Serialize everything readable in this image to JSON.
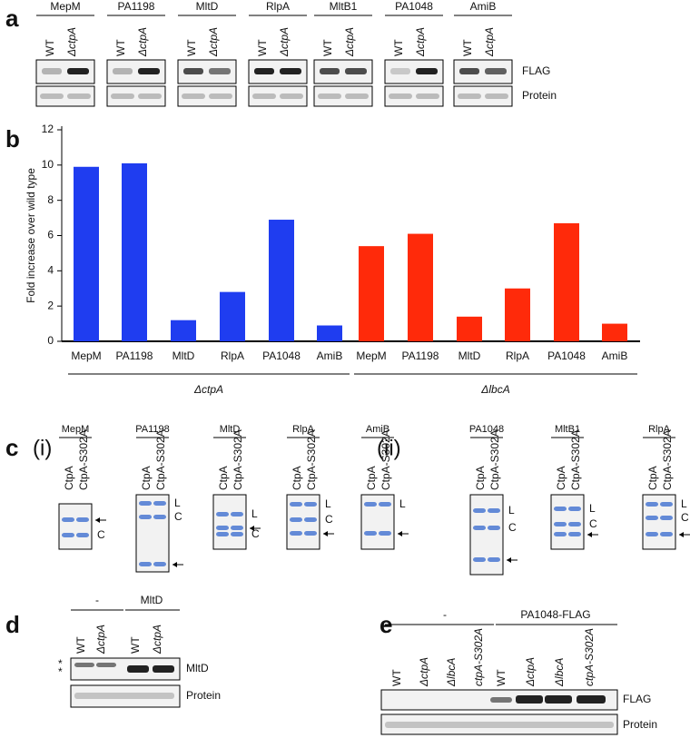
{
  "panel_a": {
    "label": "a",
    "proteins": [
      "MepM",
      "PA1198",
      "MltD",
      "RlpA",
      "MltB1",
      "PA1048",
      "AmiB"
    ],
    "lanes": [
      "WT",
      "ΔctpA"
    ],
    "blots": [
      "FLAG",
      "Protein"
    ]
  },
  "chart_data": {
    "type": "bar",
    "label": "b",
    "y_label": "Fold increase over wild type",
    "categories": [
      "MepM",
      "PA1198",
      "MltD",
      "RlpA",
      "PA1048",
      "AmiB"
    ],
    "series": [
      {
        "name": "ΔctpA",
        "color": "#1f3df0",
        "values": [
          9.9,
          10.1,
          1.2,
          2.8,
          6.9,
          0.9
        ]
      },
      {
        "name": "ΔlbcA",
        "color": "#ff2a0a",
        "values": [
          5.4,
          6.1,
          1.4,
          3.0,
          6.7,
          1.0
        ]
      }
    ],
    "ylim": [
      0,
      12
    ],
    "yticks": [
      0,
      2,
      4,
      6,
      8,
      10,
      12
    ]
  },
  "panel_c": {
    "label": "c",
    "lanes": [
      "CtpA",
      "CtpA-S302A"
    ],
    "parts": [
      {
        "label": "(i)",
        "gels": [
          {
            "name": "MepM",
            "markers": [
              "C"
            ]
          },
          {
            "name": "PA1198",
            "markers": [
              "L",
              "C"
            ]
          },
          {
            "name": "MltD",
            "markers": [
              "L",
              "C"
            ]
          },
          {
            "name": "RlpA",
            "markers": [
              "L",
              "C"
            ]
          },
          {
            "name": "AmiB",
            "markers": [
              "L"
            ]
          }
        ]
      },
      {
        "label": "(ii)",
        "gels": [
          {
            "name": "PA1048",
            "markers": [
              "L",
              "C"
            ]
          },
          {
            "name": "MltB1",
            "markers": [
              "L",
              "C"
            ]
          },
          {
            "name": "RlpA",
            "markers": [
              "L",
              "C"
            ]
          }
        ]
      }
    ]
  },
  "panel_d": {
    "label": "d",
    "groups": [
      "-",
      "MltD"
    ],
    "lanes": [
      "WT",
      "ΔctpA"
    ],
    "asterisk": "*",
    "blots": [
      "MltD",
      "Protein"
    ]
  },
  "panel_e": {
    "label": "e",
    "groups": [
      "-",
      "PA1048-FLAG"
    ],
    "lanes": [
      "WT",
      "ΔctpA",
      "ΔlbcA",
      "ctpA-S302A"
    ],
    "blots": [
      "FLAG",
      "Protein"
    ]
  }
}
